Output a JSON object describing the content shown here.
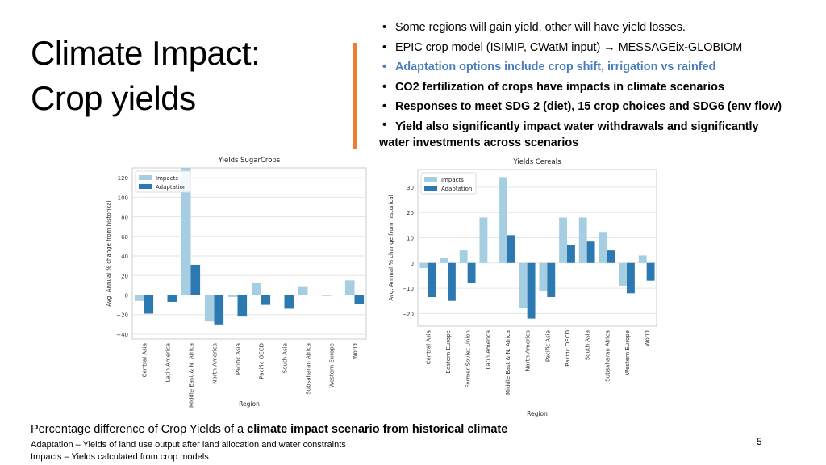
{
  "slide": {
    "title_line1": "Climate Impact:",
    "title_line2": "Crop yields",
    "bullets": [
      "Some regions will gain yield, other will have yield losses.",
      "EPIC crop model (ISIMIP, CWatM input) → MESSAGEix-GLOBIOM",
      "Adaptation options include crop shift, irrigation vs rainfed",
      "CO2 fertilization of crops have impacts in climate scenarios",
      "Responses to meet SDG 2 (diet), 15 crop choices and SDG6 (env flow)",
      "Yield also significantly impact water withdrawals and significantly",
      "water investments across scenarios"
    ],
    "footer_prefix": "Percentage difference of Crop Yields of a ",
    "footer_bold": "climate impact scenario from historical climate",
    "note_adaptation": "Adaptation – Yields of land use output after land allocation and water constraints",
    "note_impacts": "Impacts – Yields calculated from crop models",
    "page_number": "5"
  },
  "colors": {
    "impacts": "#a6cee3",
    "adaptation": "#2c78b0",
    "accent": "#ed7d31",
    "blue_text": "#4a7ebb",
    "plot_bg": "#ffffff",
    "grid": "#e6e6e6"
  },
  "chart_data": [
    {
      "type": "bar",
      "title": "Yields SugarCrops",
      "xlabel": "Region",
      "ylabel": "Avg. Annual % change from historical",
      "ylim": [
        -45,
        130
      ],
      "yticks": [
        -40,
        -20,
        0,
        20,
        40,
        60,
        80,
        100,
        120
      ],
      "legend": "top-left",
      "categories": [
        "Central Asia",
        "Latin America",
        "Middle East & N. Africa",
        "North America",
        "Pacific Asia",
        "Pacific OECD",
        "South Asia",
        "Subsaharan Africa",
        "Western Europe",
        "World"
      ],
      "series": [
        {
          "name": "Impacts",
          "values": [
            -6,
            0,
            130,
            -27,
            -2,
            12,
            0,
            9,
            -1,
            15
          ]
        },
        {
          "name": "Adaptation",
          "values": [
            -19,
            -7,
            31,
            -30,
            -22,
            -10,
            -14,
            0,
            0,
            -9
          ]
        }
      ]
    },
    {
      "type": "bar",
      "title": "Yields Cereals",
      "xlabel": "Region",
      "ylabel": "Avg. Annual % change from historical",
      "ylim": [
        -25,
        37
      ],
      "yticks": [
        -20,
        -10,
        0,
        10,
        20,
        30
      ],
      "legend": "top-left",
      "categories": [
        "Central Asia",
        "Eastern Europe",
        "Former Soviet Union",
        "Latin America",
        "Middle East & N. Africa",
        "North America",
        "Pacific Asia",
        "Pacific OECD",
        "South Asia",
        "Subsaharan Africa",
        "Western Europe",
        "World"
      ],
      "series": [
        {
          "name": "Impacts",
          "values": [
            -2,
            2,
            5,
            18,
            34,
            -18,
            -11,
            18,
            18,
            12,
            -9,
            3
          ]
        },
        {
          "name": "Adaptation",
          "values": [
            -13.5,
            -15,
            -8,
            0,
            11,
            -22,
            -13.5,
            7,
            8.5,
            5,
            -12,
            -7
          ]
        }
      ]
    }
  ]
}
